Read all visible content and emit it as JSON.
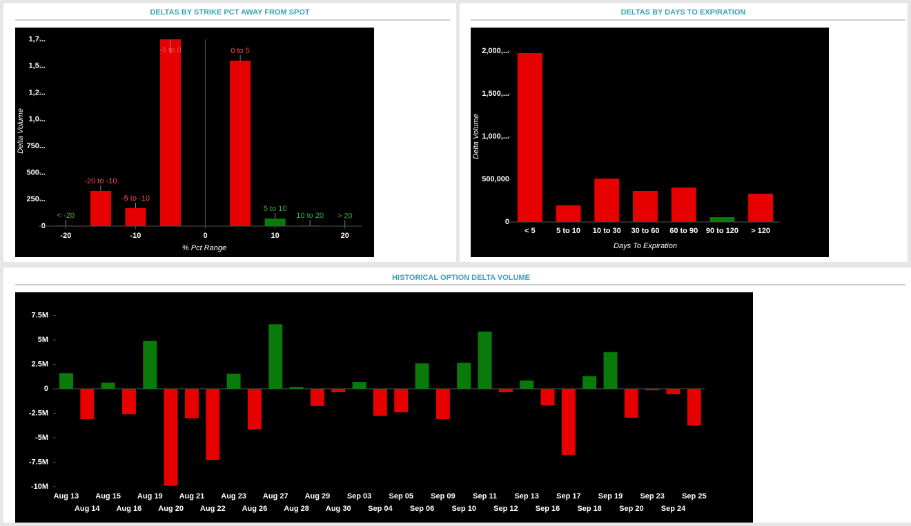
{
  "chart_data": [
    {
      "type": "bar",
      "title": "DELTAS BY STRIKE PCT AWAY FROM SPOT",
      "y_label": "Delta Volume",
      "x_label": "% Pct Range",
      "categories": [
        "< -20",
        "-20 to -10",
        "-5 to -10",
        "-5 to 0",
        "0 to 5",
        "5 to 10",
        "10 to 20",
        "> 20"
      ],
      "x": [
        -20,
        -15,
        -10,
        -5,
        5,
        10,
        15,
        20
      ],
      "values": [
        5000,
        330000,
        168000,
        1750000,
        1550000,
        71000,
        5000,
        3000
      ],
      "colors": [
        "#0a7a0a",
        "#e60000",
        "#e60000",
        "#e60000",
        "#e60000",
        "#0a7a0a",
        "#0a7a0a",
        "#0a7a0a"
      ],
      "xlim": [
        -23.5,
        22.5
      ],
      "xticks": [
        -20,
        -10,
        0,
        10,
        20
      ],
      "ylim": [
        0,
        1750000
      ],
      "yticks": [
        0,
        {
          "value": 250000,
          "label": "250..."
        },
        {
          "value": 500000,
          "label": "500..."
        },
        {
          "value": 750000,
          "label": "750..."
        },
        {
          "value": 1000000,
          "label": "1,0..."
        },
        {
          "value": 1250000,
          "label": "1,2..."
        },
        {
          "value": 1500000,
          "label": "1,5..."
        },
        {
          "value": 1750000,
          "label": "1,7..."
        }
      ]
    },
    {
      "type": "bar",
      "title": "DELTAS BY DAYS TO EXPIRATION",
      "y_label": "Delta Volume",
      "x_label": "Days To Expiration",
      "categories": [
        "< 5",
        "5 to 10",
        "10 to 30",
        "30 to 60",
        "60 to 90",
        "90 to 120",
        "> 120"
      ],
      "values": [
        1976000,
        194000,
        508000,
        363000,
        403000,
        56000,
        331000
      ],
      "colors": [
        "#e60000",
        "#e60000",
        "#e60000",
        "#e60000",
        "#e60000",
        "#0a7a0a",
        "#e60000"
      ],
      "ylim": [
        0,
        2100000
      ],
      "yticks": [
        0,
        {
          "value": 500000,
          "label": "500,000"
        },
        {
          "value": 1000000,
          "label": "1,000,..."
        },
        {
          "value": 1500000,
          "label": "1,500,..."
        },
        {
          "value": 2000000,
          "label": "2,000,..."
        }
      ]
    },
    {
      "type": "bar",
      "title": "HISTORICAL OPTION DELTA VOLUME",
      "categories": [
        "Aug 13",
        "Aug 14",
        "Aug 15",
        "Aug 16",
        "Aug 19",
        "Aug 20",
        "Aug 21",
        "Aug 22",
        "Aug 23",
        "Aug 26",
        "Aug 27",
        "Aug 28",
        "Aug 29",
        "Aug 30",
        "Sep 03",
        "Sep 04",
        "Sep 05",
        "Sep 06",
        "Sep 09",
        "Sep 10",
        "Sep 11",
        "Sep 12",
        "Sep 13",
        "Sep 16",
        "Sep 17",
        "Sep 18",
        "Sep 19",
        "Sep 20",
        "Sep 23",
        "Sep 24",
        "Sep 25"
      ],
      "values": [
        1600000,
        -3100000,
        630000,
        -2600000,
        4900000,
        -9900000,
        -3000000,
        -7250000,
        1550000,
        -4150000,
        6600000,
        200000,
        -1750000,
        -350000,
        700000,
        -2750000,
        -2400000,
        2600000,
        -3100000,
        2650000,
        5850000,
        -350000,
        850000,
        -1700000,
        -6750000,
        1300000,
        3750000,
        -2950000,
        -150000,
        -550000,
        -3750000
      ],
      "positive_color": "#0a7a0a",
      "negative_color": "#e60000",
      "ylim": [
        -10400000,
        8700000
      ],
      "yticks": [
        {
          "value": -10000000,
          "label": "-10M"
        },
        {
          "value": -7500000,
          "label": "-7.5M"
        },
        {
          "value": -5000000,
          "label": "-5M"
        },
        {
          "value": -2500000,
          "label": "-2.5M"
        },
        0,
        {
          "value": 2500000,
          "label": "2.5M"
        },
        {
          "value": 5000000,
          "label": "5M"
        },
        {
          "value": 7500000,
          "label": "7.5M"
        }
      ]
    }
  ]
}
